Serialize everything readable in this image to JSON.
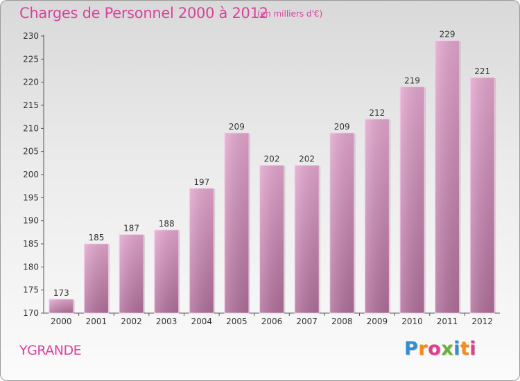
{
  "header": {
    "title": "Charges de Personnel 2000 à 2012",
    "subtitle": "(en milliers d'€)"
  },
  "footer": {
    "commune": "YGRANDE",
    "logo_letters": [
      "P",
      "r",
      "o",
      "x",
      "i",
      "t",
      "i"
    ],
    "logo_colors": [
      "#2f8fd5",
      "#f28c1c",
      "#e23d8b",
      "#6bb23a",
      "#2f8fd5",
      "#f28c1c",
      "#e23d8b"
    ]
  },
  "colors": {
    "title": "#d9429c",
    "bar_top": "#e3a6ce",
    "bar_bottom": "#b06f9a",
    "axis": "#555555"
  },
  "chart_data": {
    "type": "bar",
    "categories": [
      "2000",
      "2001",
      "2002",
      "2003",
      "2004",
      "2005",
      "2006",
      "2007",
      "2008",
      "2009",
      "2010",
      "2011",
      "2012"
    ],
    "values": [
      173,
      185,
      187,
      188,
      197,
      209,
      202,
      202,
      209,
      212,
      219,
      229,
      221
    ],
    "data_labels": [
      "173",
      "185",
      "187",
      "188",
      "197",
      "209",
      "202",
      "202",
      "209",
      "212",
      "219",
      "229",
      "221"
    ],
    "title": "Charges de Personnel 2000 à 2012",
    "xlabel": "",
    "ylabel": "",
    "ylim": [
      170,
      230
    ],
    "yticks": [
      170,
      175,
      180,
      185,
      190,
      195,
      200,
      205,
      210,
      215,
      220,
      225,
      230
    ],
    "grid": false,
    "legend": "none"
  }
}
